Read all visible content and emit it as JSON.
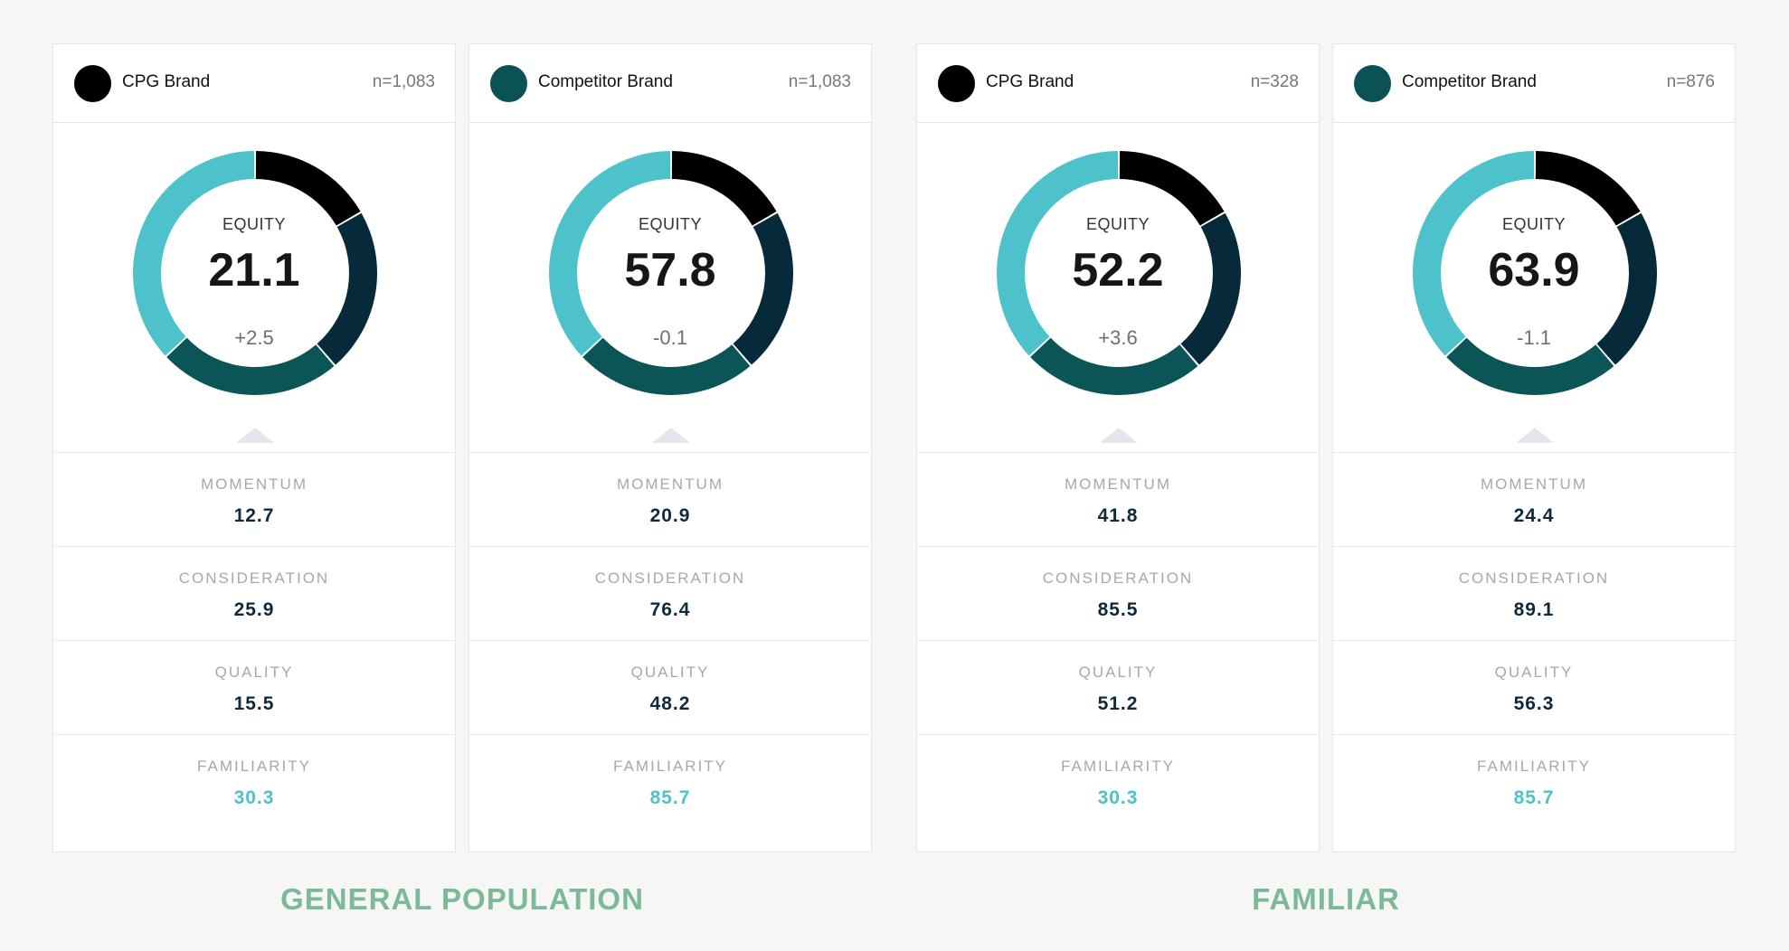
{
  "colors": {
    "brand_dot_cpg": "#000000",
    "brand_dot_competitor": "#0b5257",
    "donut_segments": [
      "#000000",
      "#072a3a",
      "#0c5557",
      "#4ec2cb"
    ],
    "familiarity_value": "#4ec2cb",
    "group_title": "#7cb996"
  },
  "icons": {
    "brand_dot": "filled-circle-icon",
    "pointer": "caret-up-icon"
  },
  "groups": [
    {
      "title": "GENERAL POPULATION"
    },
    {
      "title": "FAMILIAR"
    }
  ],
  "cards": [
    {
      "brand": "CPG Brand",
      "n": "n=1,083",
      "equity_label": "EQUITY",
      "equity": "21.1",
      "delta": "+2.5",
      "metrics": {
        "momentum": {
          "label": "MOMENTUM",
          "value": "12.7"
        },
        "consideration": {
          "label": "CONSIDERATION",
          "value": "25.9"
        },
        "quality": {
          "label": "QUALITY",
          "value": "15.5"
        },
        "familiarity": {
          "label": "FAMILIARITY",
          "value": "30.3"
        }
      }
    },
    {
      "brand": "Competitor Brand",
      "n": "n=1,083",
      "equity_label": "EQUITY",
      "equity": "57.8",
      "delta": "-0.1",
      "metrics": {
        "momentum": {
          "label": "MOMENTUM",
          "value": "20.9"
        },
        "consideration": {
          "label": "CONSIDERATION",
          "value": "76.4"
        },
        "quality": {
          "label": "QUALITY",
          "value": "48.2"
        },
        "familiarity": {
          "label": "FAMILIARITY",
          "value": "85.7"
        }
      }
    },
    {
      "brand": "CPG Brand",
      "n": "n=328",
      "equity_label": "EQUITY",
      "equity": "52.2",
      "delta": "+3.6",
      "metrics": {
        "momentum": {
          "label": "MOMENTUM",
          "value": "41.8"
        },
        "consideration": {
          "label": "CONSIDERATION",
          "value": "85.5"
        },
        "quality": {
          "label": "QUALITY",
          "value": "51.2"
        },
        "familiarity": {
          "label": "FAMILIARITY",
          "value": "30.3"
        }
      }
    },
    {
      "brand": "Competitor Brand",
      "n": "n=876",
      "equity_label": "EQUITY",
      "equity": "63.9",
      "delta": "-1.1",
      "metrics": {
        "momentum": {
          "label": "MOMENTUM",
          "value": "24.4"
        },
        "consideration": {
          "label": "CONSIDERATION",
          "value": "89.1"
        },
        "quality": {
          "label": "QUALITY",
          "value": "56.3"
        },
        "familiarity": {
          "label": "FAMILIARITY",
          "value": "85.7"
        }
      }
    }
  ]
}
